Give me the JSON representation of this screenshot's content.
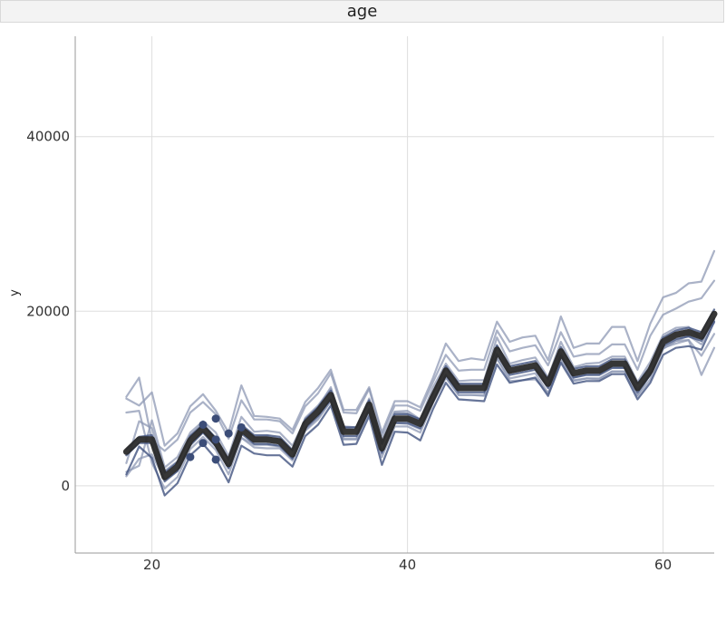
{
  "strip": {
    "title": "age"
  },
  "colors": {
    "envelope": "#8e98b4",
    "inner": "#41527f",
    "mean": "#2b2b2b",
    "points": "#3c4d78",
    "grid": "#dedede",
    "axis": "#999999"
  },
  "chart_data": {
    "type": "line",
    "title": "age",
    "xlabel": "",
    "ylabel": "y",
    "xlim": [
      14,
      64
    ],
    "ylim": [
      -7700,
      51500
    ],
    "x_ticks": [
      20,
      40,
      60
    ],
    "y_ticks": [
      0,
      20000,
      40000
    ],
    "x_tick_labels": [
      "20",
      "40",
      "60"
    ],
    "y_tick_labels": [
      "0",
      "20000",
      "40000"
    ],
    "grid": true,
    "x": [
      18,
      19,
      20,
      21,
      22,
      23,
      24,
      25,
      26,
      27,
      28,
      29,
      30,
      31,
      32,
      33,
      34,
      35,
      36,
      37,
      38,
      39,
      40,
      41,
      42,
      43,
      44,
      45,
      46,
      47,
      48,
      49,
      50,
      51,
      52,
      53,
      54,
      55,
      56,
      57,
      58,
      59,
      60,
      61,
      62,
      63,
      64
    ],
    "series": [
      {
        "role": "mean",
        "values": [
          3900,
          5300,
          5300,
          1000,
          2200,
          5200,
          6600,
          5000,
          2500,
          6500,
          5300,
          5300,
          5100,
          3600,
          7100,
          8500,
          10400,
          6200,
          6200,
          9300,
          4300,
          7700,
          7700,
          7100,
          10200,
          13200,
          11200,
          11200,
          11200,
          15600,
          13200,
          13500,
          13800,
          11700,
          15400,
          12900,
          13200,
          13200,
          14000,
          14000,
          11200,
          13200,
          16500,
          17300,
          17600,
          17100,
          19700
        ]
      },
      {
        "role": "inner",
        "values": [
          4200,
          5600,
          5800,
          1500,
          2700,
          5700,
          7000,
          5500,
          3000,
          7000,
          5800,
          5800,
          5600,
          4100,
          7600,
          9000,
          10900,
          6700,
          6700,
          9800,
          4800,
          8200,
          8200,
          7600,
          10700,
          13700,
          11700,
          11700,
          11700,
          16100,
          13700,
          14000,
          14300,
          12200,
          15900,
          13400,
          13700,
          13700,
          14500,
          14500,
          11700,
          13700,
          17000,
          17800,
          18100,
          17600,
          20200
        ]
      },
      {
        "role": "inner",
        "values": [
          3500,
          4900,
          4900,
          500,
          1700,
          4700,
          6100,
          4500,
          2000,
          6000,
          4800,
          4800,
          4600,
          3100,
          6600,
          8000,
          9900,
          5700,
          5700,
          8800,
          3800,
          7200,
          7200,
          6600,
          9700,
          12700,
          10700,
          10700,
          10700,
          15100,
          12700,
          13000,
          13300,
          11200,
          14900,
          12400,
          12700,
          12700,
          13500,
          13500,
          10700,
          12700,
          16000,
          16800,
          17100,
          16600,
          19200
        ]
      },
      {
        "role": "inner",
        "values": [
          1300,
          4500,
          3200,
          -1100,
          300,
          3500,
          4800,
          3100,
          400,
          4600,
          3700,
          3500,
          3500,
          2200,
          5700,
          7000,
          9200,
          4700,
          4800,
          8000,
          2400,
          6200,
          6100,
          5200,
          8800,
          11800,
          9900,
          9800,
          9700,
          13900,
          11800,
          12100,
          12400,
          10300,
          14100,
          11700,
          12000,
          12000,
          12800,
          12800,
          9900,
          11800,
          15000,
          15800,
          16000,
          15600,
          18800
        ]
      },
      {
        "role": "envelope",
        "values": [
          1600,
          2300,
          7500,
          2100,
          3300,
          6100,
          7400,
          6100,
          3400,
          7900,
          6200,
          6300,
          6100,
          4600,
          7600,
          9000,
          11300,
          6600,
          6700,
          10000,
          5300,
          8500,
          8600,
          7600,
          11300,
          14000,
          12000,
          12100,
          12100,
          17000,
          14000,
          14400,
          14700,
          12400,
          16500,
          13600,
          14000,
          14100,
          14800,
          14800,
          11900,
          14200,
          17300,
          18100,
          18200,
          16800,
          18700
        ]
      },
      {
        "role": "envelope",
        "values": [
          8400,
          8600,
          2600,
          -300,
          1000,
          4200,
          5600,
          4100,
          1300,
          5500,
          4400,
          4300,
          4300,
          2900,
          6300,
          7600,
          9700,
          5300,
          5300,
          8600,
          3300,
          6800,
          6800,
          6100,
          9500,
          12400,
          10400,
          10400,
          10400,
          14600,
          12300,
          12600,
          12900,
          10600,
          14600,
          12100,
          12300,
          12300,
          13100,
          13100,
          10300,
          12200,
          15700,
          16600,
          17200,
          16200,
          19000
        ]
      },
      {
        "role": "envelope",
        "values": [
          10200,
          12400,
          5200,
          4000,
          5300,
          8400,
          9600,
          8200,
          5400,
          9800,
          7600,
          7600,
          7400,
          6000,
          9100,
          10600,
          12900,
          8400,
          8300,
          11100,
          5800,
          9200,
          9200,
          8600,
          11900,
          15000,
          13200,
          13300,
          13300,
          17800,
          15400,
          15800,
          16100,
          13800,
          17600,
          14800,
          15100,
          15100,
          16200,
          16200,
          13300,
          17200,
          19600,
          20300,
          21100,
          21500,
          23500
        ]
      },
      {
        "role": "envelope",
        "values": [
          10000,
          9200,
          10700,
          4600,
          6000,
          9100,
          10500,
          8600,
          6100,
          11500,
          8000,
          7900,
          7700,
          6400,
          9600,
          11200,
          13300,
          8700,
          8700,
          11300,
          6100,
          9700,
          9700,
          9000,
          12400,
          16300,
          14300,
          14600,
          14400,
          18800,
          16500,
          17000,
          17200,
          14400,
          19400,
          15800,
          16300,
          16300,
          18200,
          18200,
          14300,
          18600,
          21600,
          22100,
          23200,
          23400,
          26900
        ]
      },
      {
        "role": "envelope",
        "values": [
          2600,
          7400,
          6600,
          1700,
          2800,
          5800,
          7200,
          5400,
          3000,
          6900,
          5600,
          5700,
          5400,
          4000,
          7800,
          9200,
          11100,
          6800,
          6700,
          9700,
          4800,
          8400,
          8300,
          7600,
          10600,
          13500,
          11600,
          11500,
          11500,
          16000,
          13000,
          13300,
          13500,
          11400,
          15200,
          12400,
          12800,
          12800,
          13600,
          13600,
          11000,
          12800,
          15800,
          16300,
          16700,
          14900,
          17400
        ]
      },
      {
        "role": "envelope",
        "values": [
          1100,
          3100,
          3600,
          700,
          1700,
          4600,
          6200,
          4800,
          2100,
          5500,
          4700,
          4700,
          4500,
          3200,
          6400,
          7800,
          9700,
          5400,
          5400,
          8500,
          3700,
          7200,
          7100,
          6500,
          9600,
          12400,
          10400,
          10400,
          10300,
          14600,
          12000,
          12100,
          12200,
          10600,
          14300,
          12000,
          12300,
          12200,
          13100,
          13100,
          10400,
          12800,
          15700,
          16600,
          16700,
          12700,
          15800
        ]
      }
    ],
    "points": {
      "x": [
        23,
        24,
        24,
        25,
        25,
        25,
        26,
        27
      ],
      "y": [
        3300,
        4900,
        7000,
        7700,
        5300,
        3000,
        6000,
        6700
      ]
    }
  }
}
